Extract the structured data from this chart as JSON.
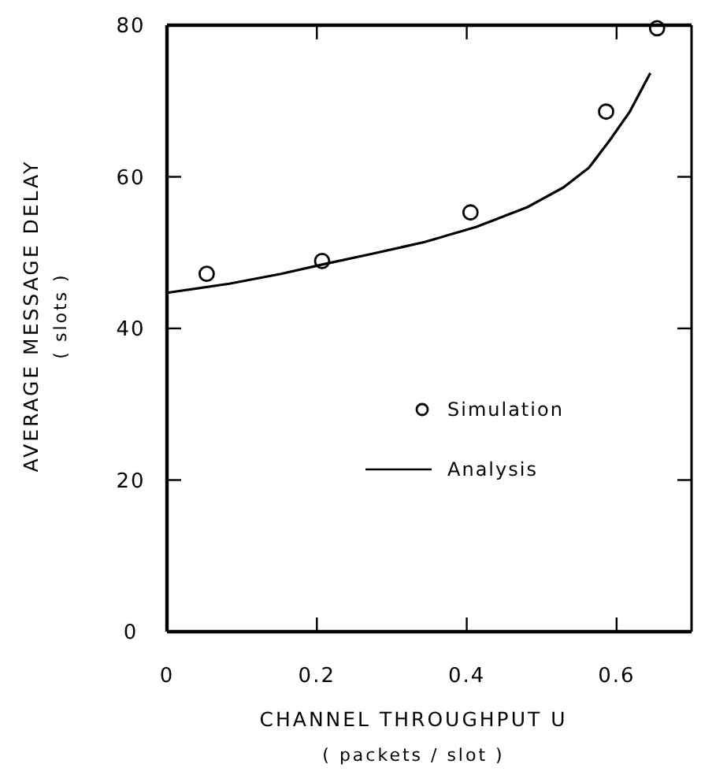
{
  "chart_data": {
    "type": "scatter",
    "xlabel": "CHANNEL THROUGHPUT U\n( packets / slot )",
    "ylabel": "AVERAGE MESSAGE DELAY\n( slots )",
    "xlim": [
      0,
      0.7
    ],
    "ylim": [
      0,
      80
    ],
    "xticks": [
      0,
      0.2,
      0.4,
      0.6
    ],
    "yticks": [
      0,
      20,
      40,
      60,
      80
    ],
    "grid": false,
    "legend": "right",
    "series": [
      {
        "name": "Simulation",
        "color": "#000000",
        "marker": "circle",
        "x": [
          0.053,
          0.207,
          0.405,
          0.586,
          0.654
        ],
        "values": [
          47.2,
          48.9,
          55.3,
          68.6,
          79.6
        ]
      },
      {
        "name": "Analysis",
        "type": "line",
        "color": "#000000",
        "marker": "none",
        "line_style": "solid",
        "x": [
          0,
          0.083,
          0.152,
          0.206,
          0.276,
          0.344,
          0.413,
          0.481,
          0.529,
          0.563,
          0.59,
          0.617,
          0.645
        ],
        "values": [
          44.7,
          45.9,
          47.2,
          48.4,
          49.9,
          51.4,
          53.4,
          56.0,
          58.6,
          61.2,
          64.7,
          68.5,
          73.7
        ]
      }
    ]
  }
}
